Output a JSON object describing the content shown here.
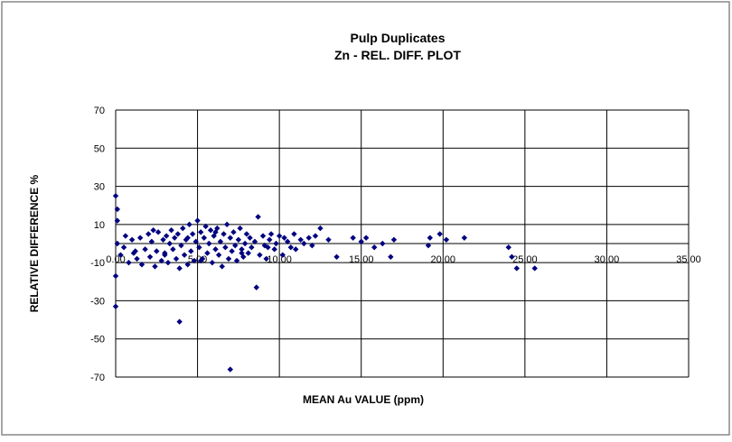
{
  "chart_data": {
    "type": "scatter",
    "title": "Pulp Duplicates",
    "subtitle": "Zn -  REL. DIFF. PLOT",
    "x_label": "MEAN  Au VALUE (ppm)",
    "y_label": "RELATIVE  DIFFERENCE  %",
    "xlim": [
      0,
      35
    ],
    "ylim": [
      -70,
      70
    ],
    "xticks": [
      {
        "value": 0,
        "label": "0.00"
      },
      {
        "value": 5,
        "label": "5.00"
      },
      {
        "value": 10,
        "label": "10.00"
      },
      {
        "value": 15,
        "label": "15.00"
      },
      {
        "value": 20,
        "label": "20.00"
      },
      {
        "value": 25,
        "label": "25.00"
      },
      {
        "value": 30,
        "label": "30.00"
      },
      {
        "value": 35,
        "label": "35.00"
      }
    ],
    "yticks": [
      70,
      50,
      30,
      10,
      -10,
      -30,
      -50,
      -70
    ],
    "grid": true,
    "color": "#000080",
    "x": [
      0.0,
      0.1,
      0.1,
      0.0,
      0.0,
      0.1,
      0.3,
      0.5,
      0.6,
      0.8,
      1.0,
      1.1,
      1.3,
      1.5,
      1.6,
      1.8,
      2.0,
      2.1,
      2.2,
      2.4,
      2.5,
      2.6,
      2.8,
      2.9,
      3.0,
      3.1,
      3.2,
      3.3,
      3.4,
      3.5,
      3.6,
      3.7,
      3.8,
      3.9,
      4.0,
      4.1,
      4.2,
      4.3,
      4.4,
      4.5,
      4.6,
      4.7,
      4.8,
      4.9,
      5.0,
      5.1,
      5.2,
      5.3,
      5.4,
      5.5,
      5.6,
      5.7,
      5.8,
      5.9,
      6.0,
      6.1,
      6.2,
      6.3,
      6.4,
      6.5,
      6.6,
      6.7,
      6.8,
      6.9,
      7.0,
      7.1,
      7.2,
      7.3,
      7.4,
      7.5,
      7.6,
      7.7,
      7.8,
      7.9,
      8.0,
      8.1,
      8.2,
      8.3,
      8.5,
      8.7,
      8.8,
      9.0,
      9.1,
      9.2,
      9.4,
      9.5,
      9.7,
      9.8,
      10.0,
      10.2,
      10.3,
      10.5,
      10.7,
      10.9,
      11.0,
      11.3,
      11.5,
      11.8,
      12.0,
      12.2,
      12.5,
      13.0,
      13.5,
      14.5,
      15.0,
      15.3,
      15.8,
      16.3,
      16.8,
      17.0,
      19.1,
      19.2,
      19.8,
      20.2,
      21.3,
      24.0,
      24.2,
      24.5,
      25.6,
      3.9,
      7.0,
      8.6,
      1.2,
      2.3,
      3.0,
      4.4,
      5.2,
      6.1,
      7.7,
      9.3
    ],
    "values": [
      25,
      18,
      12,
      -17,
      -33,
      0,
      -6,
      -2,
      4,
      -10,
      2,
      -5,
      -8,
      3,
      -11,
      -3,
      5,
      -7,
      1,
      -12,
      -4,
      6,
      -9,
      2,
      -5,
      4,
      -10,
      0,
      7,
      -3,
      3,
      -8,
      5,
      -13,
      -1,
      8,
      -6,
      2,
      -11,
      10,
      -4,
      5,
      -9,
      1,
      12,
      -2,
      6,
      -8,
      3,
      9,
      -5,
      0,
      7,
      -10,
      4,
      -3,
      8,
      -6,
      1,
      -12,
      5,
      -2,
      10,
      -8,
      3,
      -4,
      6,
      -1,
      -9,
      2,
      8,
      -3,
      -7,
      0,
      5,
      -5,
      3,
      -2,
      1,
      14,
      -6,
      4,
      -1,
      -8,
      2,
      5,
      -3,
      0,
      4,
      -6,
      3,
      1,
      -2,
      5,
      -3,
      2,
      0,
      3,
      -1,
      4,
      8,
      2,
      -7,
      3,
      1,
      3,
      -2,
      0,
      -7,
      2,
      -1,
      3,
      5,
      2,
      3,
      -2,
      -7,
      -13,
      -13,
      -41,
      -66,
      -23,
      -4,
      7,
      -6,
      3,
      -9,
      6,
      -5,
      -2
    ]
  }
}
